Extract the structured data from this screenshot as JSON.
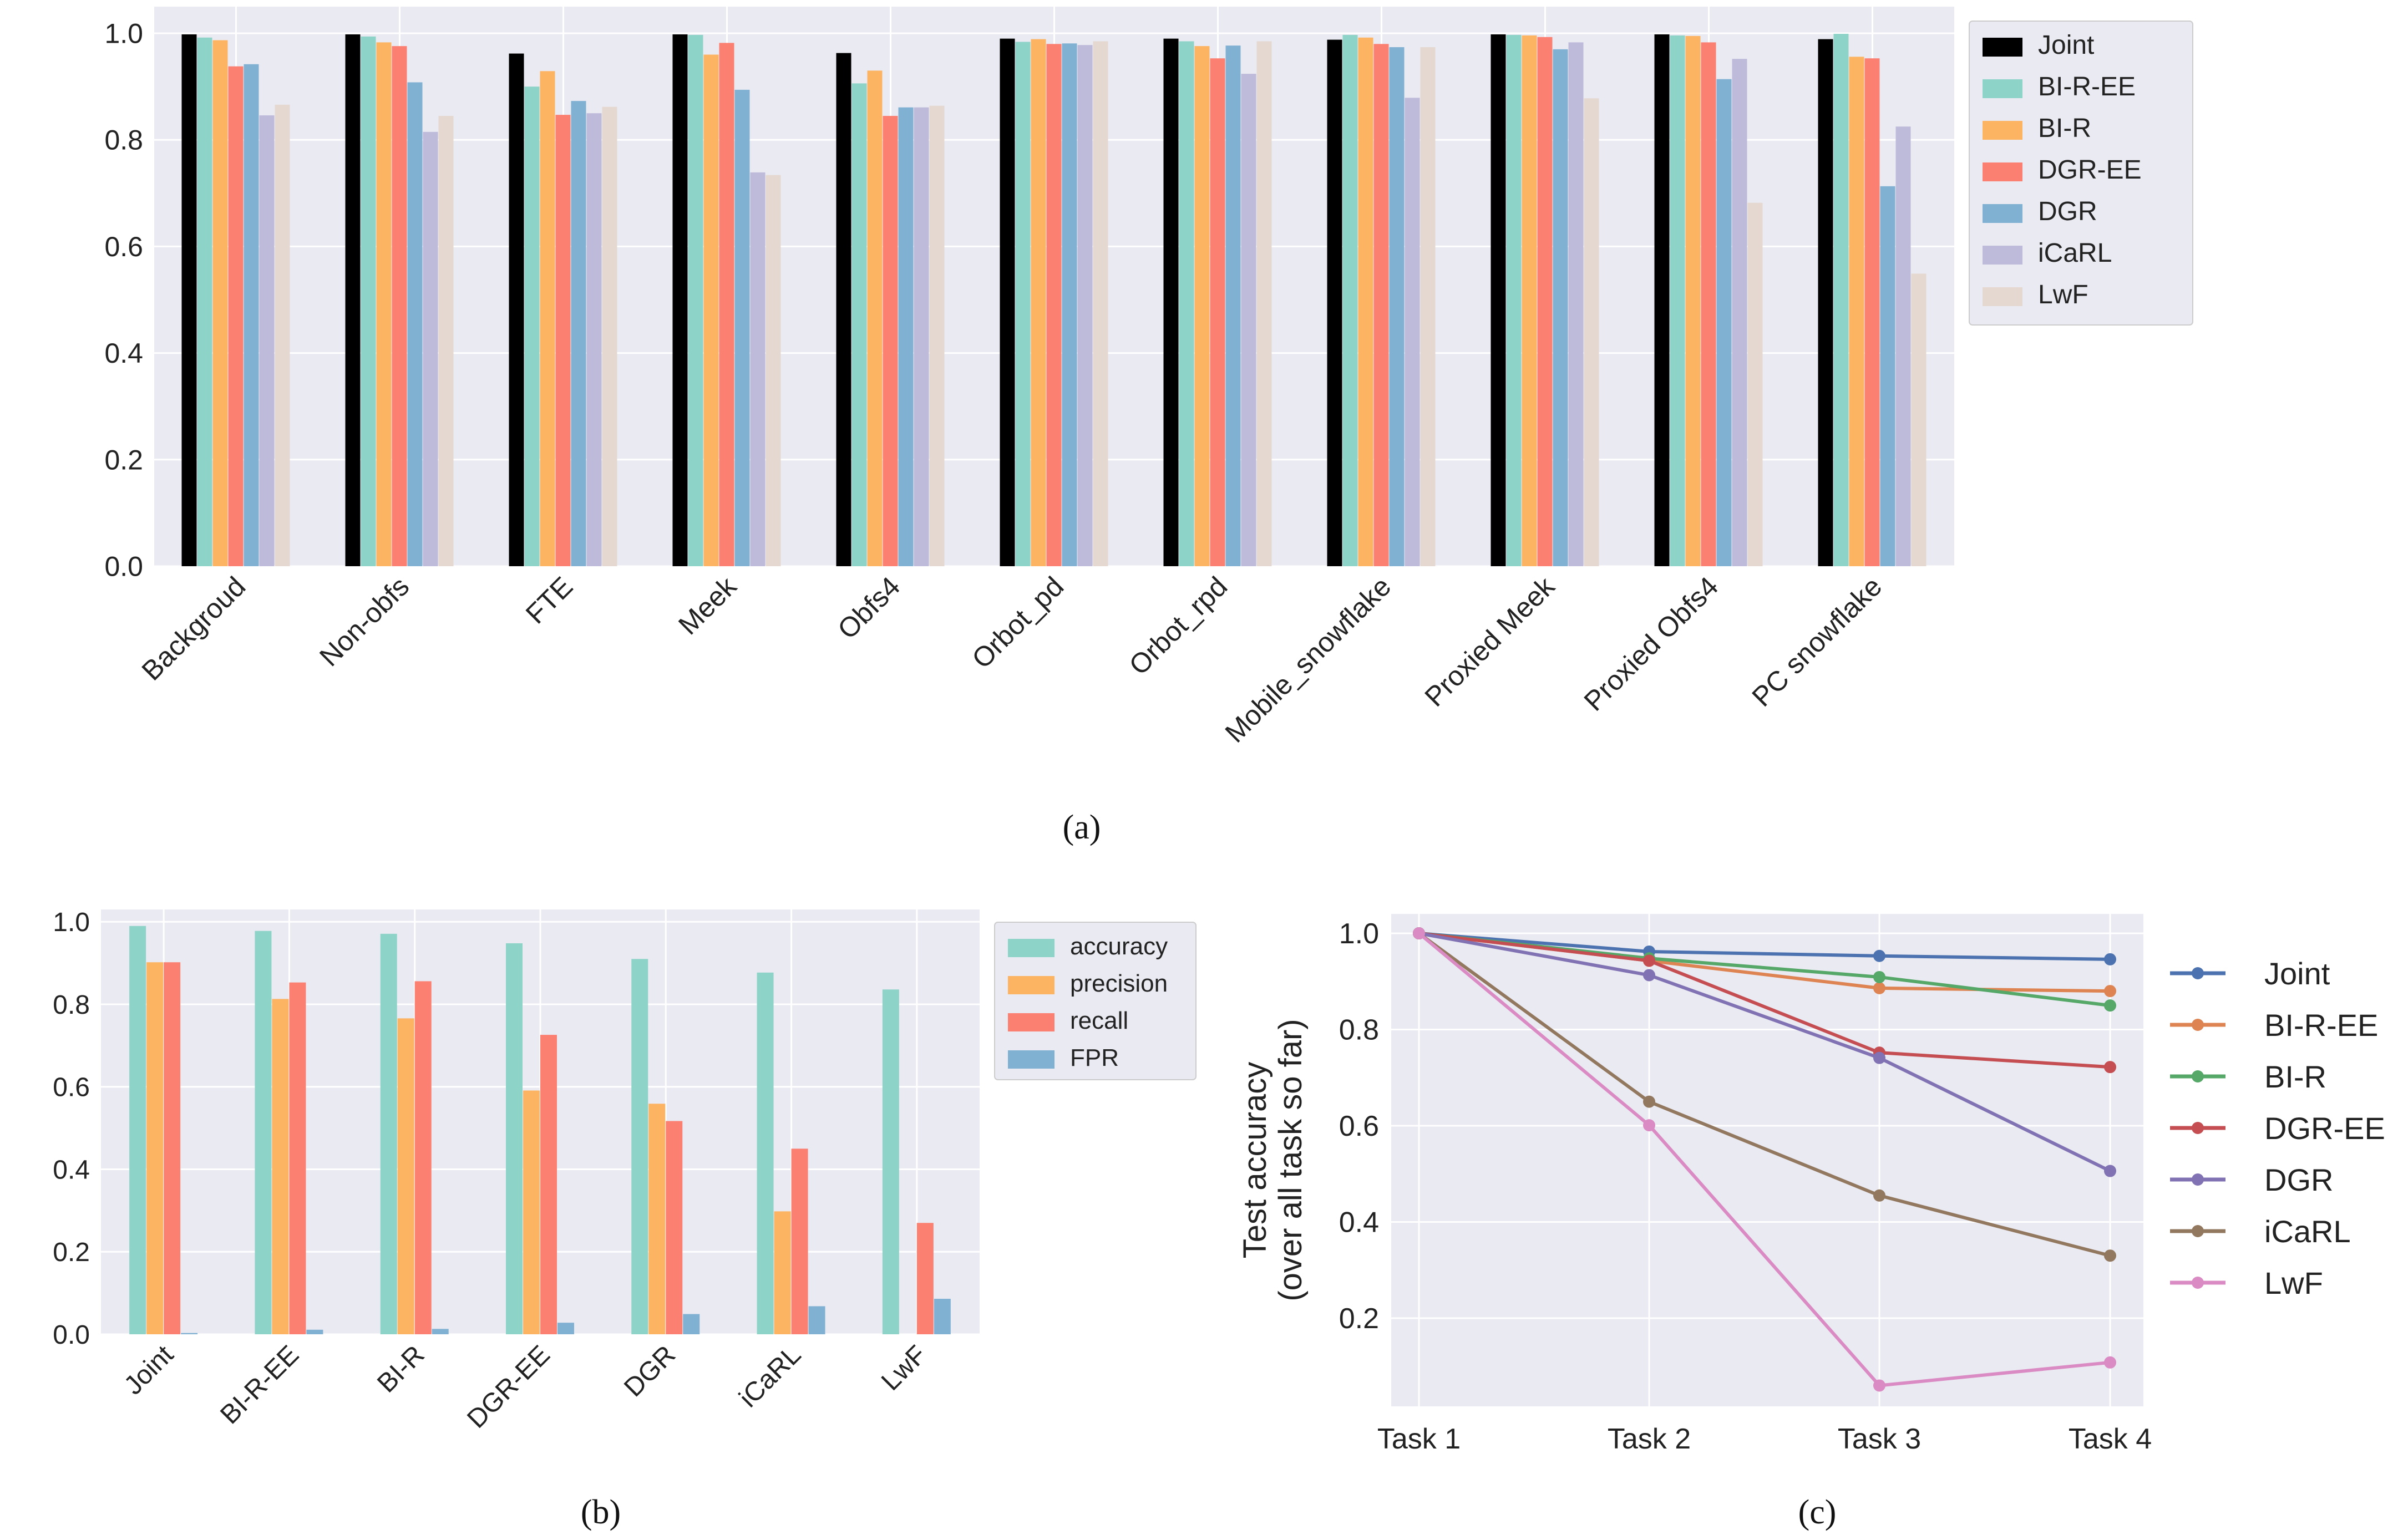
{
  "chart_data": [
    {
      "id": "a",
      "type": "bar",
      "caption": "(a)",
      "ylim": [
        0,
        1.05
      ],
      "yticks": [
        "0.0",
        "0.2",
        "0.4",
        "0.6",
        "0.8",
        "1.0"
      ],
      "grid": true,
      "legend_position": "top-right-outside",
      "categories": [
        "Backgroud",
        "Non-obfs",
        "FTE",
        "Meek",
        "Obfs4",
        "Orbot_pd",
        "Orbot_rpd",
        "Mobile_snowflake",
        "Proxied Meek",
        "Proxied Obfs4",
        "PC snowflake"
      ],
      "series": [
        {
          "name": "Joint",
          "color": "#000000",
          "values": [
            0.998,
            0.998,
            0.962,
            0.998,
            0.963,
            0.99,
            0.99,
            0.988,
            0.998,
            0.998,
            0.989
          ]
        },
        {
          "name": "BI-R-EE",
          "color": "#8dd3c7",
          "values": [
            0.992,
            0.994,
            0.9,
            0.997,
            0.906,
            0.984,
            0.985,
            0.997,
            0.997,
            0.996,
            0.999
          ]
        },
        {
          "name": "BI-R",
          "color": "#fdb462",
          "values": [
            0.987,
            0.983,
            0.929,
            0.96,
            0.93,
            0.989,
            0.976,
            0.992,
            0.996,
            0.995,
            0.956
          ]
        },
        {
          "name": "DGR-EE",
          "color": "#fb8072",
          "values": [
            0.938,
            0.976,
            0.847,
            0.982,
            0.845,
            0.98,
            0.953,
            0.98,
            0.993,
            0.983,
            0.953
          ]
        },
        {
          "name": "DGR",
          "color": "#80b1d3",
          "values": [
            0.942,
            0.908,
            0.873,
            0.894,
            0.861,
            0.981,
            0.977,
            0.974,
            0.97,
            0.914,
            0.713
          ]
        },
        {
          "name": "iCaRL",
          "color": "#bebada",
          "values": [
            0.846,
            0.815,
            0.85,
            0.739,
            0.861,
            0.978,
            0.924,
            0.879,
            0.983,
            0.952,
            0.825
          ]
        },
        {
          "name": "LwF",
          "color": "#e5d8d0",
          "values": [
            0.866,
            0.845,
            0.862,
            0.734,
            0.864,
            0.985,
            0.985,
            0.974,
            0.878,
            0.682,
            0.549
          ]
        }
      ]
    },
    {
      "id": "b",
      "type": "bar",
      "caption": "(b)",
      "ylim": [
        0,
        1.03
      ],
      "yticks": [
        "0.0",
        "0.2",
        "0.4",
        "0.6",
        "0.8",
        "1.0"
      ],
      "grid": true,
      "legend_position": "top-right-outside",
      "categories": [
        "Joint",
        "BI-R-EE",
        "BI-R",
        "DGR-EE",
        "DGR",
        "iCaRL",
        "LwF"
      ],
      "series": [
        {
          "name": "accuracy",
          "color": "#8dd3c7",
          "values": [
            0.99,
            0.978,
            0.971,
            0.948,
            0.91,
            0.877,
            0.836
          ]
        },
        {
          "name": "precision",
          "color": "#fdb462",
          "values": [
            0.902,
            0.813,
            0.766,
            0.591,
            0.559,
            0.298,
            0.0
          ]
        },
        {
          "name": "recall",
          "color": "#fb8072",
          "values": [
            0.902,
            0.853,
            0.856,
            0.726,
            0.517,
            0.45,
            0.27
          ]
        },
        {
          "name": "FPR",
          "color": "#80b1d3",
          "values": [
            0.003,
            0.011,
            0.013,
            0.028,
            0.049,
            0.068,
            0.086
          ]
        }
      ]
    },
    {
      "id": "c",
      "type": "line",
      "caption": "(c)",
      "ylabel": "Test accuracy",
      "ylabel2": "(over all task so far)",
      "categories": [
        "Task 1",
        "Task 2",
        "Task 3",
        "Task 4"
      ],
      "ylim": [
        0.0,
        1.05
      ],
      "yticks": [
        "0.2",
        "0.4",
        "0.6",
        "0.8",
        "1.0"
      ],
      "grid": true,
      "legend_position": "right-outside",
      "series": [
        {
          "name": "Joint",
          "color": "#4c72b0",
          "values": [
            1.0,
            0.962,
            0.953,
            0.946
          ]
        },
        {
          "name": "BI-R-EE",
          "color": "#dd8452",
          "values": [
            1.0,
            0.943,
            0.886,
            0.88
          ]
        },
        {
          "name": "BI-R",
          "color": "#55a868",
          "values": [
            1.0,
            0.948,
            0.909,
            0.85
          ]
        },
        {
          "name": "DGR-EE",
          "color": "#c44e52",
          "values": [
            1.0,
            0.943,
            0.752,
            0.722
          ]
        },
        {
          "name": "DGR",
          "color": "#8172b3",
          "values": [
            1.0,
            0.913,
            0.741,
            0.506
          ]
        },
        {
          "name": "iCaRL",
          "color": "#937860",
          "values": [
            1.0,
            0.65,
            0.455,
            0.33
          ]
        },
        {
          "name": "LwF",
          "color": "#da8bc3",
          "values": [
            1.0,
            0.601,
            0.06,
            0.108
          ]
        }
      ]
    }
  ]
}
